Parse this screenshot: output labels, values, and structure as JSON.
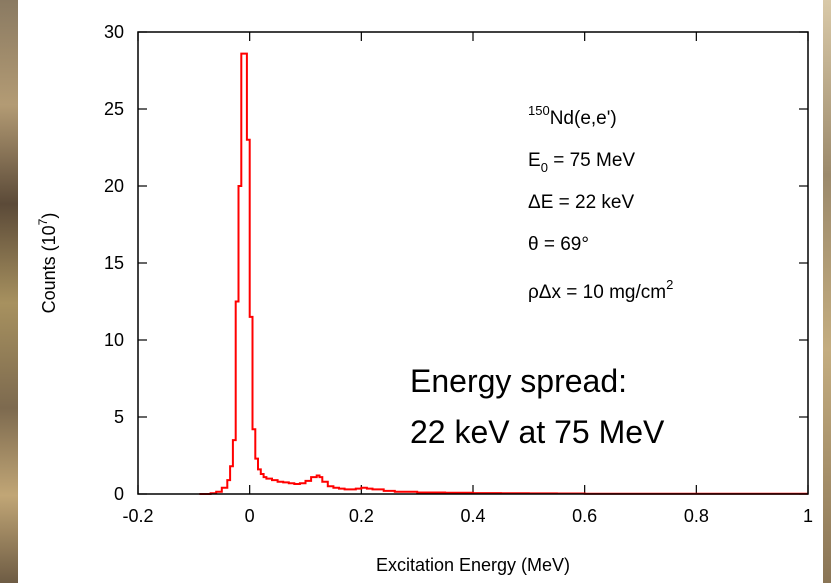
{
  "chart_data": {
    "type": "line",
    "title": "",
    "xlabel": "Excitation Energy (MeV)",
    "ylabel": {
      "prefix": "Counts (10",
      "sup": "7",
      "suffix": ")"
    },
    "xlim": [
      -0.2,
      1.0
    ],
    "ylim": [
      0,
      30
    ],
    "xticks": [
      -0.2,
      0,
      0.2,
      0.4,
      0.6,
      0.8,
      1
    ],
    "xtick_labels": [
      "-0.2",
      "0",
      "0.2",
      "0.4",
      "0.6",
      "0.8",
      "1"
    ],
    "yticks": [
      0,
      5,
      10,
      15,
      20,
      25,
      30
    ],
    "ytick_labels": [
      "0",
      "5",
      "10",
      "15",
      "20",
      "25",
      "30"
    ],
    "grid": false,
    "series": [
      {
        "color": "#ff0000",
        "x": [
          -0.09,
          -0.08,
          -0.07,
          -0.06,
          -0.05,
          -0.04,
          -0.035,
          -0.03,
          -0.025,
          -0.02,
          -0.015,
          -0.01,
          -0.005,
          0.0,
          0.005,
          0.01,
          0.015,
          0.02,
          0.025,
          0.03,
          0.04,
          0.05,
          0.06,
          0.07,
          0.08,
          0.09,
          0.1,
          0.11,
          0.12,
          0.125,
          0.13,
          0.14,
          0.15,
          0.16,
          0.17,
          0.18,
          0.19,
          0.2,
          0.21,
          0.22,
          0.24,
          0.26,
          0.3,
          0.35,
          0.4,
          0.45,
          0.5,
          0.55,
          0.6,
          0.7,
          0.8,
          0.9,
          1.0
        ],
        "y": [
          0,
          0,
          0.05,
          0.15,
          0.4,
          0.9,
          1.8,
          3.5,
          12.5,
          20,
          28.6,
          28.6,
          23,
          11.5,
          4.2,
          2.3,
          1.6,
          1.3,
          1.1,
          1.0,
          0.9,
          0.8,
          0.75,
          0.7,
          0.65,
          0.7,
          0.85,
          1.1,
          1.2,
          1.1,
          0.8,
          0.5,
          0.4,
          0.35,
          0.3,
          0.3,
          0.35,
          0.4,
          0.35,
          0.3,
          0.2,
          0.15,
          0.1,
          0.08,
          0.06,
          0.05,
          0.04,
          0.03,
          0.02,
          0.01,
          0.01,
          0.01,
          0.01
        ]
      }
    ],
    "annotations": [
      {
        "pre_sup": "150",
        "text": "Nd(e,e')"
      },
      {
        "text": "E",
        "sub": "0",
        "suffix": " = 75 MeV"
      },
      {
        "text": "ΔE = 22 keV"
      },
      {
        "text": "θ = 69°"
      },
      {
        "text": "ρΔx = 10 mg/cm",
        "sup": "2"
      }
    ],
    "note_lines": [
      "Energy spread:",
      "22 keV at 75 MeV"
    ]
  }
}
